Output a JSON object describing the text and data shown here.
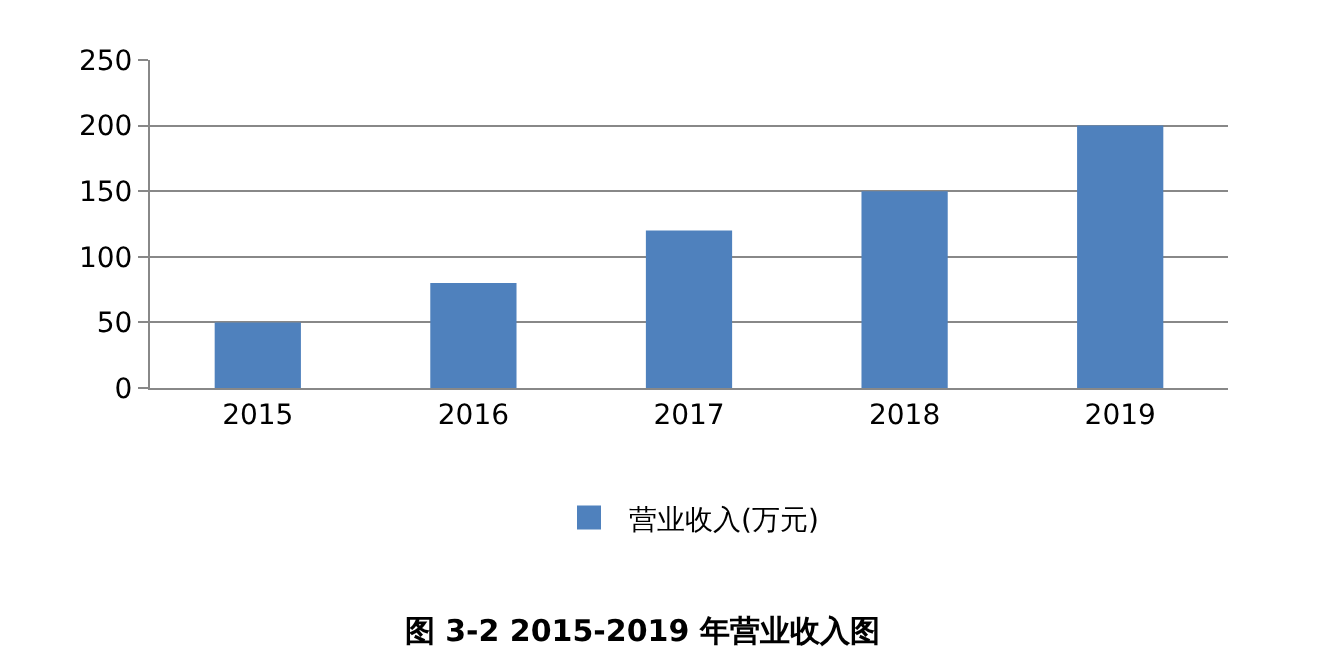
{
  "chart_data": {
    "type": "bar",
    "title": "图 3-2 2015-2019 年营业收入图",
    "categories": [
      "2015",
      "2016",
      "2017",
      "2018",
      "2019"
    ],
    "series": [
      {
        "name": "营业收入(万元)",
        "color": "#4f81bd",
        "values": [
          50,
          80,
          120,
          150,
          200
        ]
      }
    ],
    "ylim": [
      0,
      250
    ],
    "yticks": [
      0,
      50,
      100,
      150,
      200,
      250
    ],
    "grid": "y",
    "legend": "bottom"
  }
}
